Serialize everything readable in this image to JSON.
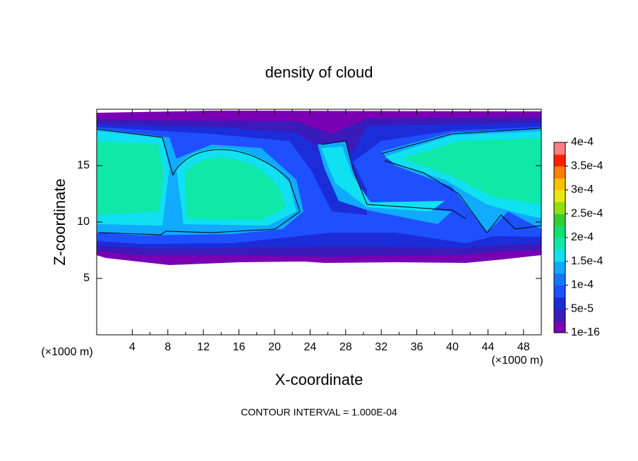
{
  "chart_data": {
    "type": "contour",
    "title": "density of cloud",
    "x_label": "X-coordinate",
    "y_label": "Z-coordinate",
    "x_unit_left": "(×1000 m)",
    "x_unit_right": "(×1000 m)",
    "note": "CONTOUR INTERVAL = 1.000E-04",
    "xlim": [
      0,
      50
    ],
    "ylim": [
      0,
      20
    ],
    "xticks": [
      4,
      8,
      12,
      16,
      20,
      24,
      28,
      32,
      36,
      40,
      44,
      48
    ],
    "yticks": [
      5,
      10,
      15
    ],
    "colorbar": {
      "ticks": [
        {
          "value": 1e-16,
          "label": "1e-16"
        },
        {
          "value": 5e-05,
          "label": "5e-5"
        },
        {
          "value": 0.0001,
          "label": "1e-4"
        },
        {
          "value": 0.00015,
          "label": "1.5e-4"
        },
        {
          "value": 0.0002,
          "label": "2e-4"
        },
        {
          "value": 0.00025,
          "label": "2.5e-4"
        },
        {
          "value": 0.0003,
          "label": "3e-4"
        },
        {
          "value": 0.00035,
          "label": "3.5e-4"
        },
        {
          "value": 0.0004,
          "label": "4e-4"
        }
      ],
      "colors": [
        "#7a00b4",
        "#3a1ab8",
        "#1c2cd8",
        "#1e50ff",
        "#1478ff",
        "#10aaff",
        "#10e0f0",
        "#10e8a8",
        "#10e070",
        "#30d030",
        "#90e010",
        "#e8e810",
        "#ffc000",
        "#ff8000",
        "#ff2000",
        "#ff8080"
      ]
    }
  }
}
